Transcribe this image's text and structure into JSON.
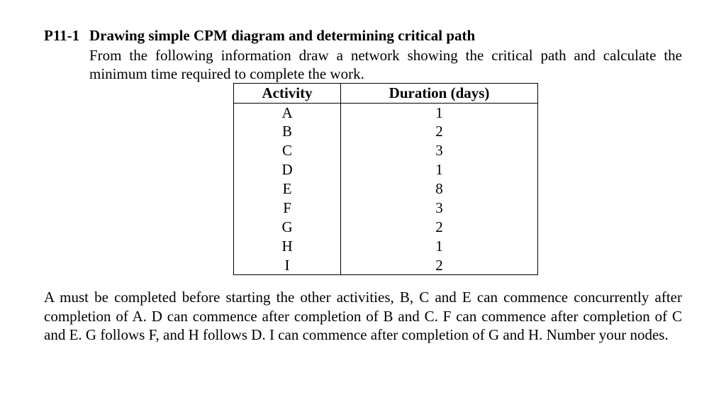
{
  "problem": {
    "number": "P11-1",
    "title": "Drawing simple CPM diagram and determining critical path",
    "intro": "From the following information draw a network showing the critical path and calculate the minimum time required to complete the work.",
    "description": "A must be completed before starting the other activities, B, C and E can commence concurrently after completion of A. D can commence after completion of B and C. F can commence after completion of C and E.  G follows F, and H follows D. I can commence after completion of G and H. Number your nodes."
  },
  "table": {
    "type": "table",
    "columns": [
      "Activity",
      "Duration (days)"
    ],
    "column_widths": [
      0.5,
      0.5
    ],
    "alignment": [
      "center",
      "center"
    ],
    "header_fontweight": "bold",
    "font_family": "Times New Roman",
    "font_size_pt": 16,
    "border_color": "#000000",
    "background_color": "#ffffff",
    "text_color": "#000000",
    "rows": [
      [
        "A",
        "1"
      ],
      [
        "B",
        "2"
      ],
      [
        "C",
        "3"
      ],
      [
        "D",
        "1"
      ],
      [
        "E",
        "8"
      ],
      [
        "F",
        "3"
      ],
      [
        "G",
        "2"
      ],
      [
        "H",
        "1"
      ],
      [
        "I",
        "2"
      ]
    ]
  },
  "page_style": {
    "background_color": "#ffffff",
    "text_color": "#000000",
    "font_family": "Times New Roman",
    "title_fontsize_pt": 16,
    "body_fontsize_pt": 16
  }
}
